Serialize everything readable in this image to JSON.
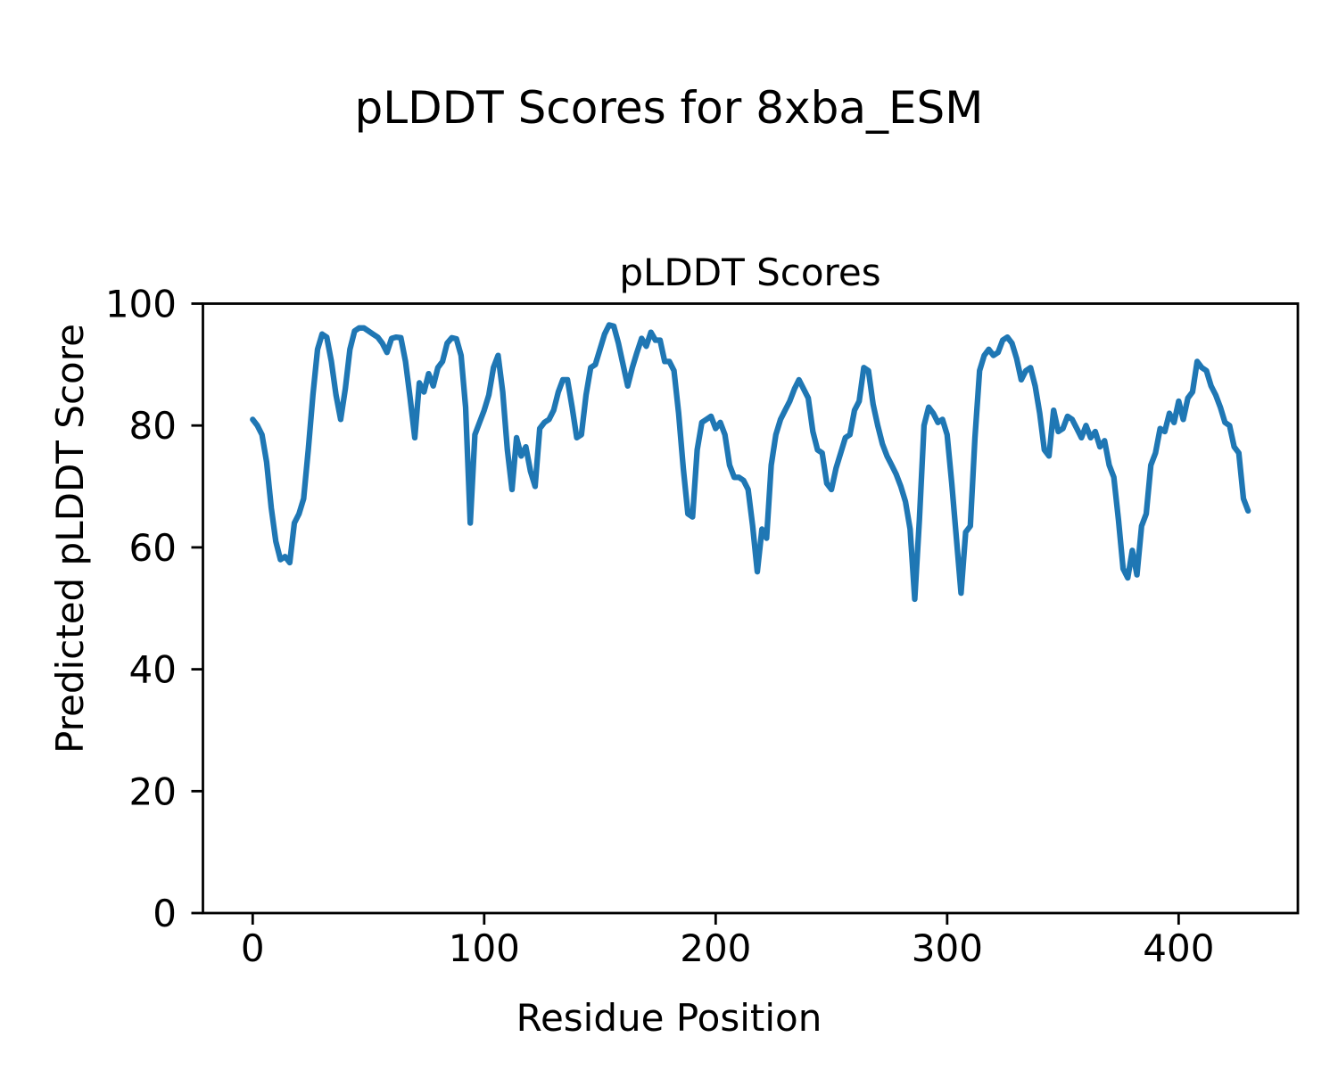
{
  "figure": {
    "title": "pLDDT Scores for 8xba_ESM",
    "background_color": "#ffffff"
  },
  "chart_data": {
    "type": "line",
    "title": "pLDDT Scores",
    "xlabel": "Residue Position",
    "ylabel": "Predicted pLDDT Score",
    "xlim": [
      -21.5,
      451.5
    ],
    "ylim": [
      0,
      100
    ],
    "xticks": [
      0,
      100,
      200,
      300,
      400
    ],
    "yticks": [
      0,
      20,
      40,
      60,
      80,
      100
    ],
    "grid": false,
    "legend": "none",
    "axis_color": "#000000",
    "series": [
      {
        "name": "pLDDT",
        "color": "#1f77b4",
        "x_start": 0,
        "x_step": 2,
        "values": [
          81,
          80,
          78.5,
          74,
          66.5,
          61,
          58,
          58.5,
          57.5,
          64,
          65.5,
          68,
          76,
          85,
          92.5,
          95,
          94.5,
          90.5,
          85,
          81,
          86,
          92.5,
          95.5,
          96,
          96,
          95.5,
          95,
          94.5,
          93.5,
          92,
          94.3,
          94.5,
          94.4,
          90.5,
          84.5,
          78,
          87,
          85.5,
          88.5,
          86.5,
          89.5,
          90.5,
          93.5,
          94.4,
          94.2,
          91.5,
          83,
          64,
          78.5,
          80.5,
          82.5,
          85,
          89.5,
          91.5,
          85.5,
          76,
          69.5,
          78,
          75,
          76.5,
          72.5,
          70,
          79.5,
          80.5,
          81,
          82.5,
          85.5,
          87.5,
          87.5,
          83,
          78,
          78.5,
          85,
          89.5,
          90,
          92.5,
          95,
          96.5,
          96.3,
          93.5,
          90,
          86.5,
          89.5,
          92,
          94.3,
          93,
          95.3,
          94,
          94,
          90.5,
          90.5,
          89,
          82,
          73,
          65.5,
          65,
          76,
          80.5,
          81,
          81.5,
          79.5,
          80.5,
          78.5,
          73.5,
          71.5,
          71.5,
          71,
          69.5,
          63.5,
          56,
          63,
          61.5,
          73.5,
          78.5,
          81,
          82.5,
          84,
          86,
          87.5,
          86,
          84.5,
          79,
          76,
          75.5,
          70.5,
          69.5,
          73,
          75.5,
          78,
          78.5,
          82.5,
          84,
          89.5,
          89,
          83.5,
          80,
          77,
          75,
          73.5,
          72,
          70,
          67.5,
          63,
          51.5,
          64.5,
          80,
          83,
          82,
          80.5,
          81,
          78.5,
          70.5,
          61.5,
          52.5,
          62.5,
          63.5,
          78,
          89,
          91.5,
          92.5,
          91.5,
          92,
          94,
          94.5,
          93.5,
          91,
          87.5,
          89,
          89.5,
          86.5,
          82,
          76,
          75,
          82.5,
          79,
          79.5,
          81.5,
          81,
          79.5,
          78,
          80,
          78,
          79,
          76.5,
          77.5,
          73.5,
          71.5,
          64.5,
          56.5,
          55,
          59.5,
          55.5,
          63.5,
          65.5,
          73.5,
          75.5,
          79.5,
          79,
          82,
          80.5,
          84,
          81,
          84.5,
          85.5,
          90.5,
          89.5,
          89,
          86.5,
          85,
          83,
          80.5,
          80,
          76.5,
          75.5,
          68,
          66
        ]
      }
    ]
  }
}
